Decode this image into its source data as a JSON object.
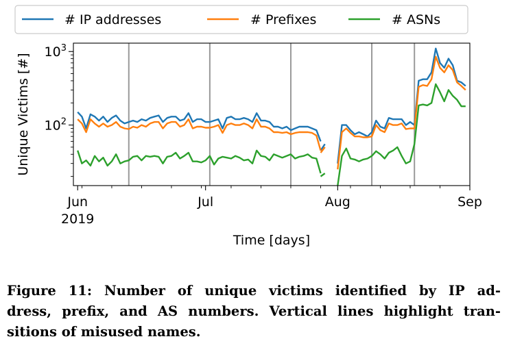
{
  "chart_data": {
    "type": "line",
    "y_scale": "log",
    "ylim": [
      15,
      1300
    ],
    "x_range": [
      "2019-05-31",
      "2019-09-01"
    ],
    "ylabel": "Unique Victims [#]",
    "xlabel": "Time [days]",
    "x_ticks": [
      {
        "date": "2019-06-01",
        "label": "Jun",
        "label2": "2019"
      },
      {
        "date": "2019-07-01",
        "label": "Jul"
      },
      {
        "date": "2019-08-01",
        "label": "Aug"
      },
      {
        "date": "2019-09-01",
        "label": "Sep"
      }
    ],
    "y_ticks": [
      {
        "value": 100,
        "base": "10",
        "exp": "2"
      },
      {
        "value": 1000,
        "base": "10",
        "exp": "3"
      }
    ],
    "vertical_lines": [
      "2019-06-13",
      "2019-07-02",
      "2019-07-21",
      "2019-08-09",
      "2019-08-19"
    ],
    "legend": {
      "placement": "top",
      "entries": [
        "# IP addresses",
        "# Prefixes",
        "# ASNs"
      ]
    },
    "series": [
      {
        "name": "# IP addresses",
        "color": "#1f77b4",
        "segments": [
          {
            "start": "2019-06-01",
            "values": [
              150,
              130,
              90,
              140,
              130,
              115,
              130,
              110,
              125,
              135,
              115,
              105,
              110,
              115,
              110,
              120,
              115,
              125,
              130,
              135,
              110,
              125,
              130,
              130,
              115,
              120,
              145,
              110,
              120,
              120,
              110,
              110,
              115,
              120,
              90,
              125,
              130,
              120,
              120,
              125,
              120,
              110,
              145,
              115,
              115,
              110,
              95,
              95,
              90,
              95,
              85,
              90,
              95,
              95,
              95,
              90,
              85,
              60
            ]
          },
          {
            "start": "2019-07-28",
            "values": [
              45,
              55
            ]
          },
          {
            "start": "2019-08-01",
            "values": [
              30,
              100,
              100,
              85,
              75,
              80,
              75,
              70,
              80,
              115,
              95,
              90,
              125,
              120,
              120,
              120,
              100,
              110,
              100,
              400,
              420,
              420,
              520,
              1100,
              700,
              600,
              800,
              650,
              400,
              380,
              340
            ]
          }
        ]
      },
      {
        "name": "# Prefixes",
        "color": "#ff7f0e",
        "segments": [
          {
            "start": "2019-06-01",
            "values": [
              120,
              105,
              80,
              120,
              105,
              95,
              105,
              95,
              100,
              110,
              95,
              90,
              88,
              95,
              92,
              100,
              95,
              105,
              110,
              110,
              90,
              105,
              110,
              110,
              95,
              100,
              120,
              90,
              95,
              95,
              92,
              92,
              95,
              100,
              78,
              100,
              105,
              100,
              100,
              105,
              100,
              90,
              120,
              95,
              95,
              90,
              80,
              80,
              78,
              80,
              75,
              78,
              80,
              80,
              80,
              78,
              72,
              45
            ]
          },
          {
            "start": "2019-07-28",
            "values": [
              42,
              50
            ]
          },
          {
            "start": "2019-08-01",
            "values": [
              25,
              80,
              90,
              78,
              70,
              70,
              68,
              68,
              70,
              100,
              85,
              80,
              105,
              100,
              100,
              105,
              88,
              90,
              90,
              330,
              350,
              340,
              420,
              850,
              600,
              520,
              650,
              560,
              380,
              340,
              300
            ]
          }
        ]
      },
      {
        "name": "# ASNs",
        "color": "#2ca02c",
        "segments": [
          {
            "start": "2019-06-01",
            "values": [
              45,
              30,
              33,
              28,
              38,
              32,
              36,
              28,
              32,
              40,
              30,
              32,
              33,
              37,
              38,
              33,
              38,
              37,
              38,
              37,
              30,
              37,
              38,
              42,
              35,
              38,
              42,
              32,
              32,
              31,
              33,
              38,
              29,
              35,
              37,
              36,
              35,
              38,
              36,
              33,
              34,
              30,
              45,
              38,
              37,
              33,
              40,
              38,
              36,
              38,
              40,
              35,
              37,
              38,
              40,
              36,
              35,
              22
            ]
          },
          {
            "start": "2019-07-28",
            "values": [
              20,
              22
            ]
          },
          {
            "start": "2019-08-01",
            "values": [
              15,
              38,
              48,
              35,
              34,
              32,
              34,
              35,
              38,
              44,
              40,
              35,
              42,
              45,
              50,
              38,
              30,
              32,
              55,
              185,
              190,
              185,
              200,
              360,
              280,
              210,
              300,
              250,
              220,
              180,
              180
            ]
          }
        ]
      }
    ]
  },
  "caption": {
    "lines": [
      "Figure 11: Number of unique victims identified by IP ad-",
      "dress, prefix, and AS numbers. Vertical lines highlight tran-",
      "sitions of misused names."
    ]
  }
}
